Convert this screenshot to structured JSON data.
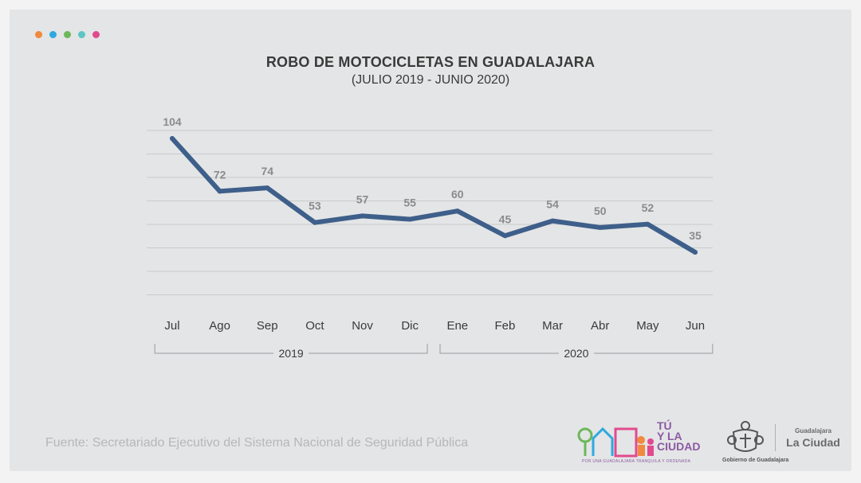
{
  "header": {
    "dot_colors": [
      "#ef8a3f",
      "#2ea9df",
      "#6cb85a",
      "#5cc6c4",
      "#e14a8e"
    ]
  },
  "chart_data": {
    "type": "line",
    "title": "ROBO DE MOTOCICLETAS EN GUADALAJARA",
    "subtitle": "(JULIO 2019 - JUNIO 2020)",
    "categories": [
      "Jul",
      "Ago",
      "Sep",
      "Oct",
      "Nov",
      "Dic",
      "Ene",
      "Feb",
      "Mar",
      "Abr",
      "May",
      "Jun"
    ],
    "series": [
      {
        "values": [
          104,
          72,
          74,
          53,
          57,
          55,
          60,
          45,
          54,
          50,
          52,
          35
        ],
        "color": "#3e5f8a"
      }
    ],
    "groups": [
      {
        "label": "2019",
        "from": 0,
        "to": 5
      },
      {
        "label": "2020",
        "from": 6,
        "to": 11
      }
    ],
    "grid": true,
    "gridline_color": "#c9cacb",
    "label_color": "#8a8b8d"
  },
  "footer": {
    "source": "Fuente: Secretariado Ejecutivo del Sistema Nacional de Seguridad Pública",
    "logo_tu_la_ciudad": "TÚ\nY LA\nCIUDAD",
    "logo_tu_la_ciudad_tagline": "POR UNA GUADALAJARA TRANQUILA Y ORDENADA",
    "logo_gobierno": "Gobierno de Guadalajara",
    "logo_gdl_small": "Guadalajara",
    "logo_gdl_big": "La Ciudad"
  }
}
